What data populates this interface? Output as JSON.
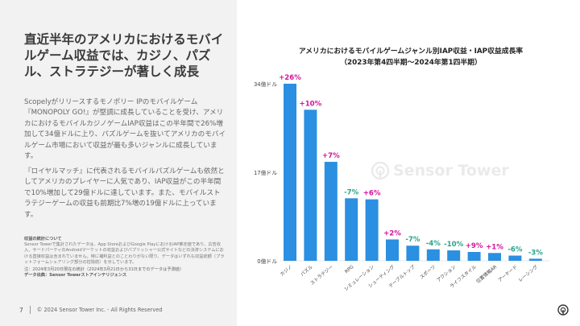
{
  "headline": "直近半年のアメリカにおけるモバイルゲーム収益では、カジノ、パズル、ストラテジーが著しく成長",
  "paragraph1": "Scopelyがリリースするモノポリー IPのモバイルゲーム『MONOPOLY GO!』が堅調に成長していることを受け、アメリカにおけるモバイルカジノゲームIAP収益はこの半年間で26%増加して34億ドルに上り、パズルゲームを抜いてアメリカのモバイルゲーム市場において収益が最も多いジャンルに成長しています。",
  "paragraph2": "『ロイヤルマッチ』に代表されるモバイルパズルゲームも依然としてアメリカのプレイヤーに人気であり、IAP収益がこの半年間で10%増加して29億ドルに達しています。また、モバイルストラテジーゲームの収益も前期比7%増の19億ドルに上っています。",
  "notes": {
    "heading": "収益の統計について",
    "body": "Sensor Towerで集計されたデータは、App StoreおよびGoogle PlayにおけるIAP推定値であり、広告収入、サードパーティのAndroidマーケットの収益およびパブリッシャー公式サイトなどの決済システムにおける直接収益は含まれていません。特に補利益とのことわりがない限り、データはいずれも収益総額（プラットフォームシェアリング部分の控除前）を示しています。",
    "date": "注：2024年3月20日現在の統計（2024年3月21日から31日までのデータは予測値）",
    "source": "データ出典：Sensor Towerストアインテリジェンス"
  },
  "footer": {
    "page": "7",
    "copyright": "© 2024 Sensor Tower Inc. - All Rights Reserved"
  },
  "watermark": "Sensor Tower",
  "colors": {
    "bar": "#2b8fe2",
    "positive": "#d4149b",
    "negative": "#2aa38c",
    "panel": "#f2f2f2"
  },
  "chart_data": {
    "type": "bar",
    "title": "アメリカにおけるモバイルゲームジャンル別IAP収益・IAP収益成長率",
    "subtitle": "（2023年第4四半期～2024年第1四半期）",
    "xlabel": "",
    "ylabel": "",
    "ylim": [
      0,
      34
    ],
    "yticks": [
      0,
      17,
      34
    ],
    "ytick_labels": [
      "0億ドル",
      "17億ドル",
      "34億ドル"
    ],
    "categories": [
      "カジノ",
      "パズル",
      "ストラテジー",
      "RPG",
      "シミュレーション",
      "シューティング",
      "テーブルトップ",
      "スポーツ",
      "アクション",
      "ライフスタイル",
      "位置情報AR",
      "アーケード",
      "レーシング"
    ],
    "values": [
      34,
      29,
      19,
      12,
      11.8,
      4.1,
      2.9,
      2.2,
      2.0,
      1.7,
      1.5,
      1.0,
      0.4
    ],
    "growth_labels": [
      "+26%",
      "+10%",
      "+7%",
      "-7%",
      "+6%",
      "+2%",
      "-7%",
      "-4%",
      "-10%",
      "+9%",
      "+1%",
      "-6%",
      "-3%"
    ],
    "growth": [
      26,
      10,
      7,
      -7,
      6,
      2,
      -7,
      -4,
      -10,
      9,
      1,
      -6,
      -3
    ]
  }
}
